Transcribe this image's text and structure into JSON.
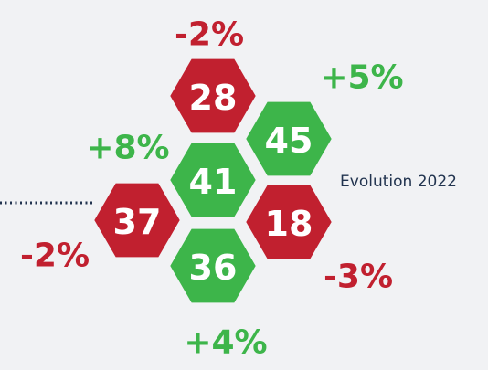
{
  "caption": "Evolution 2022",
  "colors": {
    "up": "#3db54a",
    "down": "#c1202f"
  },
  "cells": [
    {
      "value": 28,
      "change": "-2%",
      "trend": "down"
    },
    {
      "value": 45,
      "change": "+5%",
      "trend": "up"
    },
    {
      "value": 41,
      "change": "+8%",
      "trend": "up"
    },
    {
      "value": 37,
      "change": "-2%",
      "trend": "down"
    },
    {
      "value": 18,
      "change": "-3%",
      "trend": "down"
    },
    {
      "value": 36,
      "change": "+4%",
      "trend": "up"
    }
  ]
}
